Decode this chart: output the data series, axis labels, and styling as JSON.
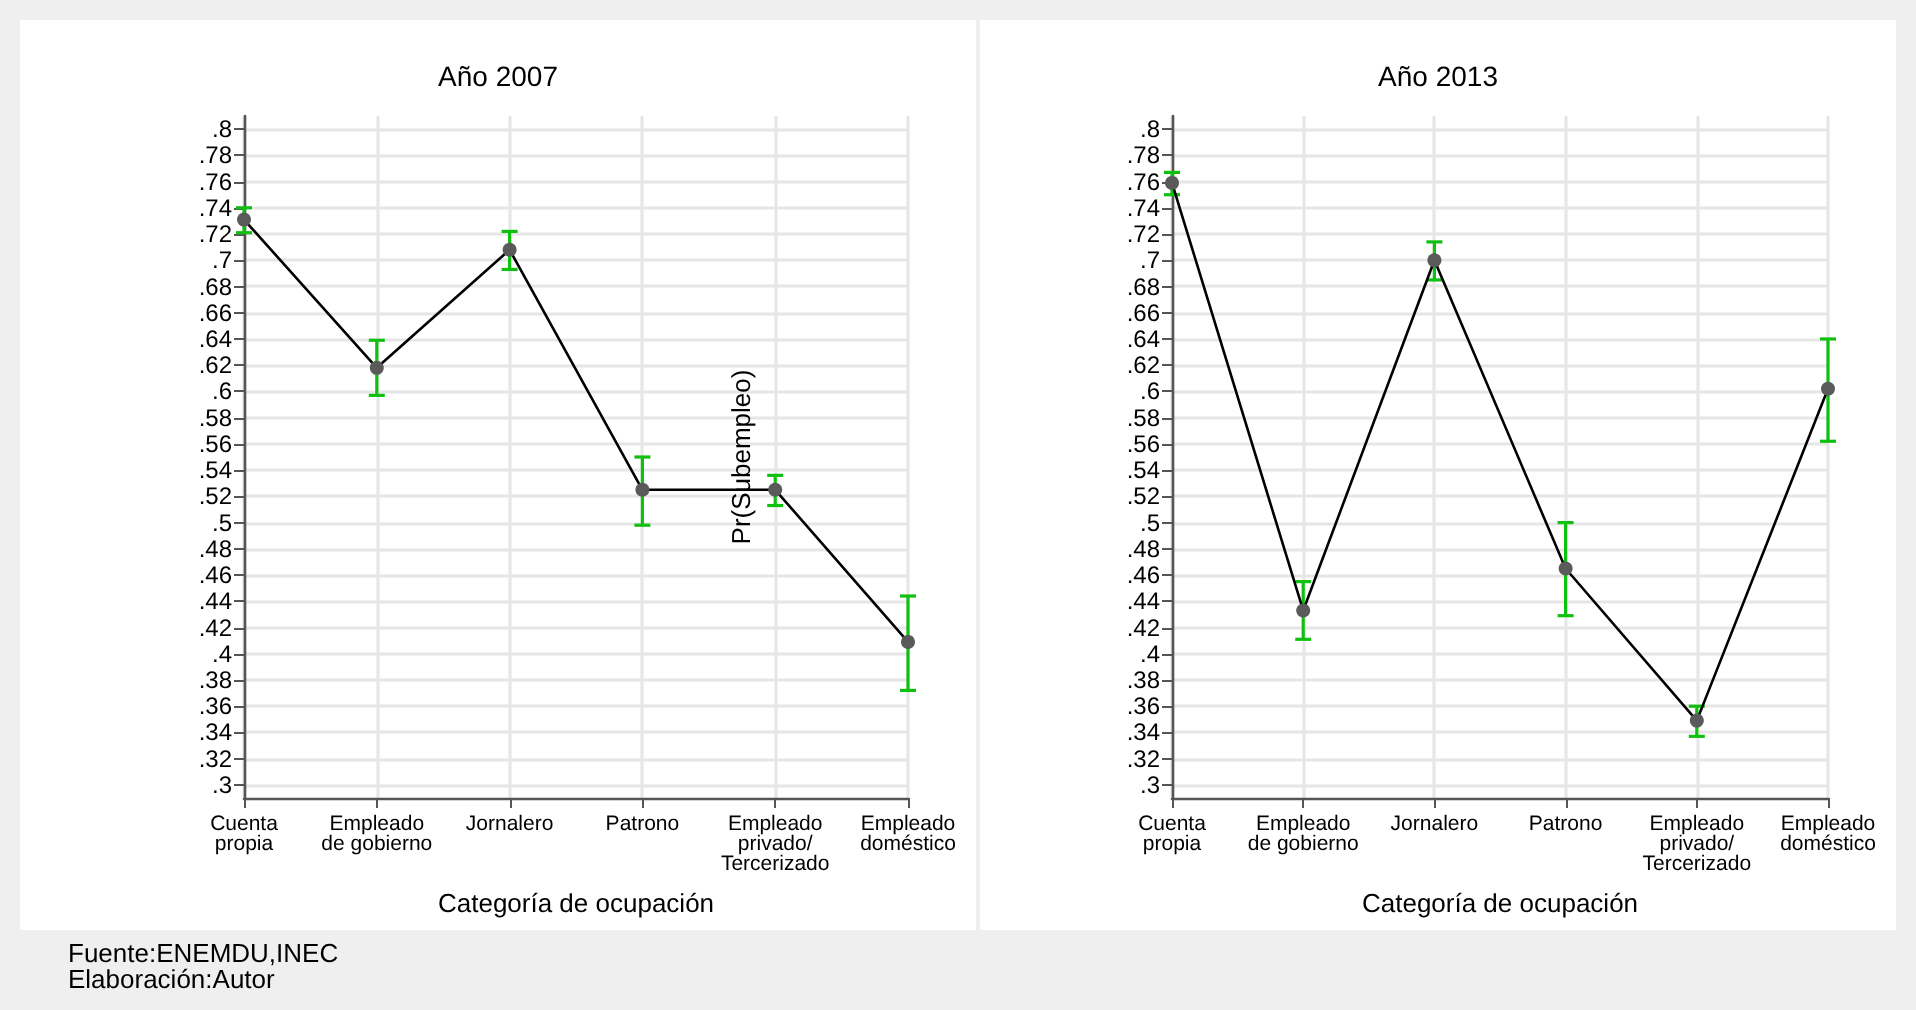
{
  "chart_data": [
    {
      "type": "line",
      "title": "Año 2007",
      "xlabel": "Categoría de ocupación",
      "ylabel": "Pr(Subempleo)",
      "categories": [
        "Cuenta\npropia",
        "Empleado\nde gobierno",
        "Jornalero",
        "Patrono",
        "Empleado\nprivado/\nTercerizado",
        "Empleado\ndoméstico"
      ],
      "series": [
        {
          "color": "#000000",
          "values": [
            0.731,
            0.618,
            0.708,
            0.525,
            0.525,
            0.409
          ],
          "errors": [
            [
              0.721,
              0.74
            ],
            [
              0.597,
              0.639
            ],
            [
              0.693,
              0.722
            ],
            [
              0.498,
              0.55
            ],
            [
              0.513,
              0.536
            ],
            [
              0.372,
              0.444
            ]
          ]
        }
      ],
      "ylim": [
        0.29,
        0.81
      ],
      "yticks": [
        {
          "value": 0.3,
          "label": ".3"
        },
        {
          "value": 0.32,
          "label": ".32"
        },
        {
          "value": 0.34,
          "label": ".34"
        },
        {
          "value": 0.36,
          "label": ".36"
        },
        {
          "value": 0.38,
          "label": ".38"
        },
        {
          "value": 0.4,
          "label": ".4"
        },
        {
          "value": 0.42,
          "label": ".42"
        },
        {
          "value": 0.44,
          "label": ".44"
        },
        {
          "value": 0.46,
          "label": ".46"
        },
        {
          "value": 0.48,
          "label": ".48"
        },
        {
          "value": 0.5,
          "label": ".5"
        },
        {
          "value": 0.52,
          "label": ".52"
        },
        {
          "value": 0.54,
          "label": ".54"
        },
        {
          "value": 0.56,
          "label": ".56"
        },
        {
          "value": 0.58,
          "label": ".58"
        },
        {
          "value": 0.6,
          "label": ".6"
        },
        {
          "value": 0.62,
          "label": ".62"
        },
        {
          "value": 0.64,
          "label": ".64"
        },
        {
          "value": 0.66,
          "label": ".66"
        },
        {
          "value": 0.68,
          "label": ".68"
        },
        {
          "value": 0.7,
          "label": ".7"
        },
        {
          "value": 0.72,
          "label": ".72"
        },
        {
          "value": 0.74,
          "label": ".74"
        },
        {
          "value": 0.76,
          "label": ".76"
        },
        {
          "value": 0.78,
          "label": ".78"
        },
        {
          "value": 0.8,
          "label": ".8"
        }
      ],
      "grid": true,
      "marker": "circle",
      "legend": false,
      "annotations": [
        "Fuente:ENEMDU,INEC",
        "Elaboración:Autor"
      ]
    },
    {
      "type": "line",
      "title": "Año 2013",
      "xlabel": "Categoría de ocupación",
      "categories": [
        "Cuenta\npropia",
        "Empleado\nde gobierno",
        "Jornalero",
        "Patrono",
        "Empleado\nprivado/\nTercerizado",
        "Empleado\ndoméstico"
      ],
      "series": [
        {
          "color": "#000000",
          "values": [
            0.759,
            0.433,
            0.7,
            0.465,
            0.349,
            0.602
          ],
          "errors": [
            [
              0.75,
              0.767
            ],
            [
              0.411,
              0.455
            ],
            [
              0.685,
              0.714
            ],
            [
              0.429,
              0.5
            ],
            [
              0.337,
              0.36
            ],
            [
              0.562,
              0.64
            ]
          ]
        }
      ],
      "ylim": [
        0.29,
        0.81
      ],
      "yticks": [
        {
          "value": 0.3,
          "label": ".3"
        },
        {
          "value": 0.32,
          "label": ".32"
        },
        {
          "value": 0.34,
          "label": ".34"
        },
        {
          "value": 0.36,
          "label": ".36"
        },
        {
          "value": 0.38,
          "label": ".38"
        },
        {
          "value": 0.4,
          "label": ".4"
        },
        {
          "value": 0.42,
          "label": ".42"
        },
        {
          "value": 0.44,
          "label": ".44"
        },
        {
          "value": 0.46,
          "label": ".46"
        },
        {
          "value": 0.48,
          "label": ".48"
        },
        {
          "value": 0.5,
          "label": ".5"
        },
        {
          "value": 0.52,
          "label": ".52"
        },
        {
          "value": 0.54,
          "label": ".54"
        },
        {
          "value": 0.56,
          "label": ".56"
        },
        {
          "value": 0.58,
          "label": ".58"
        },
        {
          "value": 0.6,
          "label": ".6"
        },
        {
          "value": 0.62,
          "label": ".62"
        },
        {
          "value": 0.64,
          "label": ".64"
        },
        {
          "value": 0.66,
          "label": ".66"
        },
        {
          "value": 0.68,
          "label": ".68"
        },
        {
          "value": 0.7,
          "label": ".7"
        },
        {
          "value": 0.72,
          "label": ".72"
        },
        {
          "value": 0.74,
          "label": ".74"
        },
        {
          "value": 0.76,
          "label": ".76"
        },
        {
          "value": 0.78,
          "label": ".78"
        },
        {
          "value": 0.8,
          "label": ".8"
        }
      ],
      "grid": true,
      "marker": "circle",
      "legend": false
    }
  ]
}
